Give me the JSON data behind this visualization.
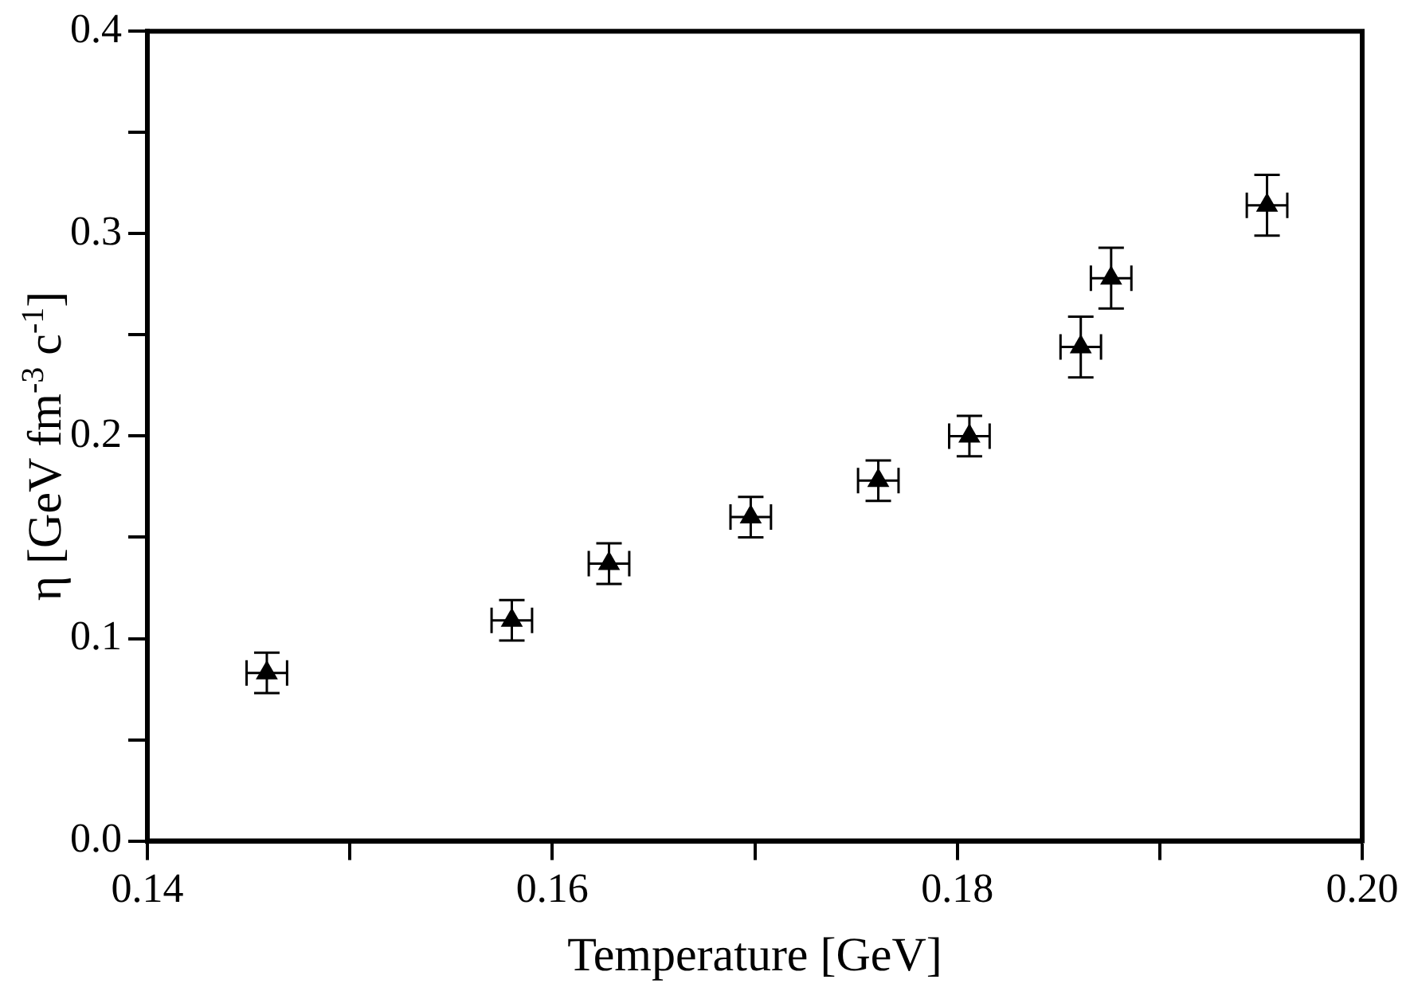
{
  "chart_data": {
    "type": "scatter",
    "xlabel": "Temperature [GeV]",
    "ylabel": "η [GeV fm$^{-3}$ c$^{-1}$]",
    "x": [
      0.1459,
      0.158,
      0.1628,
      0.1698,
      0.1761,
      0.1806,
      0.1861,
      0.1876,
      0.1953
    ],
    "values": [
      0.083,
      0.109,
      0.137,
      0.16,
      0.178,
      0.2,
      0.244,
      0.278,
      0.314
    ],
    "errors": [
      0.01,
      0.01,
      0.01,
      0.01,
      0.01,
      0.01,
      0.015,
      0.015,
      0.015
    ],
    "xerrors": [
      0.001,
      0.001,
      0.001,
      0.001,
      0.001,
      0.001,
      0.001,
      0.001,
      0.001
    ],
    "color": "#000000",
    "marker": "triangle",
    "grid": false,
    "legend": false,
    "xlim": [
      0.14,
      0.2
    ],
    "xticks": [
      0.14,
      {
        "value": 0.15,
        "label": null
      },
      0.16,
      {
        "value": 0.17,
        "label": null
      },
      0.18,
      {
        "value": 0.19,
        "label": null
      },
      {
        "value": 0.2,
        "label": "0.20"
      }
    ],
    "ylim": [
      0,
      0.4
    ],
    "yticks": [
      {
        "value": 0,
        "label": "0.0"
      },
      {
        "value": 0.05,
        "label": null
      },
      0.1,
      {
        "value": 0.15,
        "label": null
      },
      0.2,
      {
        "value": 0.25,
        "label": null
      },
      0.3,
      {
        "value": 0.35,
        "label": null
      },
      0.4
    ]
  }
}
